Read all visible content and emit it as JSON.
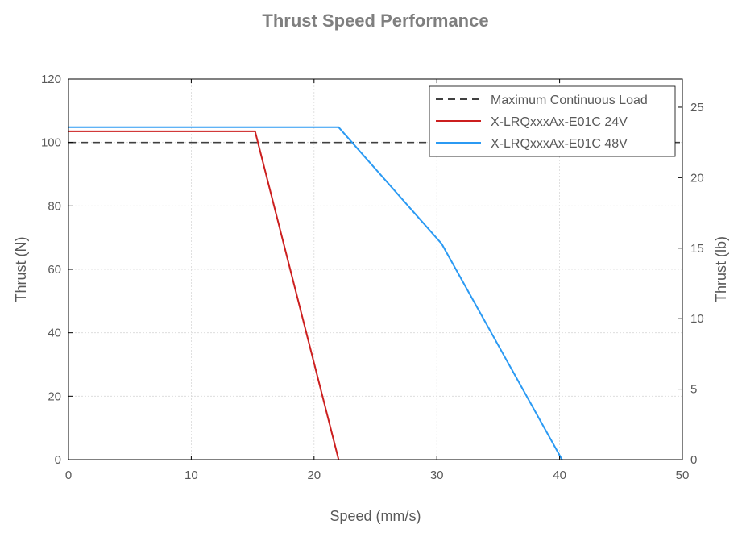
{
  "chart_data": {
    "type": "line",
    "title": "Thrust Speed Performance",
    "xlabel": "Speed (mm/s)",
    "ylabel": "Thrust (N)",
    "y2label": "Thrust (lb)",
    "xlim": [
      0,
      50
    ],
    "ylim": [
      0,
      120
    ],
    "y2lim": [
      0,
      27
    ],
    "xticks": [
      0,
      10,
      20,
      30,
      40,
      50
    ],
    "yticks": [
      0,
      20,
      40,
      60,
      80,
      100,
      120
    ],
    "y2ticks": [
      0,
      5,
      10,
      15,
      20,
      25
    ],
    "grid": true,
    "legend_position": "top-right",
    "series": [
      {
        "name": "Maximum Continuous Load",
        "color": "#404040",
        "style": "dashed",
        "x": [
          0,
          50
        ],
        "y": [
          100,
          100
        ]
      },
      {
        "name": "X-LRQxxxAx-E01C 24V",
        "color": "#cc1f1f",
        "style": "solid",
        "x": [
          0,
          15.2,
          22
        ],
        "y": [
          103.5,
          103.5,
          0
        ]
      },
      {
        "name": "X-LRQxxxAx-E01C 48V",
        "color": "#2b9af3",
        "style": "solid",
        "x": [
          0,
          22,
          30.4,
          40.2
        ],
        "y": [
          104.8,
          104.8,
          68,
          0
        ]
      }
    ]
  }
}
